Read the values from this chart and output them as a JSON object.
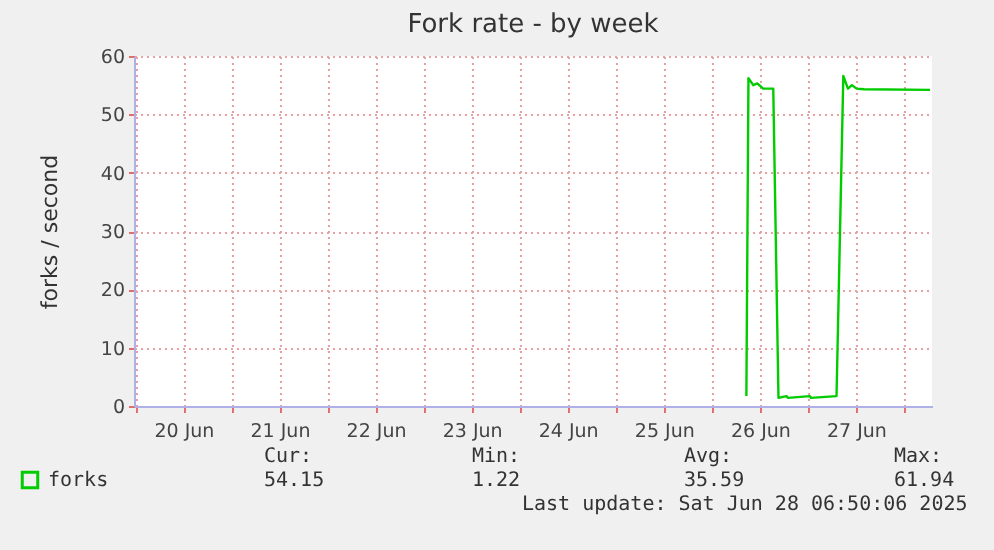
{
  "chart_data": {
    "type": "line",
    "title": "Fork rate - by week",
    "ylabel": "forks / second",
    "xlim": [
      "2025-06-19T23:40",
      "2025-06-28T07:00"
    ],
    "xticks": [
      {
        "value": "2025-06-20T00:00",
        "label": null
      },
      {
        "value": "2025-06-20T12:00",
        "label": "20 Jun"
      },
      {
        "value": "2025-06-21T00:00",
        "label": null
      },
      {
        "value": "2025-06-21T12:00",
        "label": "21 Jun"
      },
      {
        "value": "2025-06-22T00:00",
        "label": null
      },
      {
        "value": "2025-06-22T12:00",
        "label": "22 Jun"
      },
      {
        "value": "2025-06-23T00:00",
        "label": null
      },
      {
        "value": "2025-06-23T12:00",
        "label": "23 Jun"
      },
      {
        "value": "2025-06-24T00:00",
        "label": null
      },
      {
        "value": "2025-06-24T12:00",
        "label": "24 Jun"
      },
      {
        "value": "2025-06-25T00:00",
        "label": null
      },
      {
        "value": "2025-06-25T12:00",
        "label": "25 Jun"
      },
      {
        "value": "2025-06-26T00:00",
        "label": null
      },
      {
        "value": "2025-06-26T12:00",
        "label": "26 Jun"
      },
      {
        "value": "2025-06-27T00:00",
        "label": null
      },
      {
        "value": "2025-06-27T12:00",
        "label": "27 Jun"
      },
      {
        "value": "2025-06-28T00:00",
        "label": null
      }
    ],
    "ylim": [
      0,
      60
    ],
    "yticks": [
      0,
      10,
      20,
      30,
      40,
      50,
      60
    ],
    "grid": true,
    "legend": "bottom left",
    "marker": "none",
    "line_style": "solid",
    "series": [
      {
        "name": "forks",
        "color": "#00cc00",
        "x": [
          "2025-06-26T08:38",
          "2025-06-26T09:09",
          "2025-06-26T10:21",
          "2025-06-26T11:21",
          "2025-06-26T12:50",
          "2025-06-26T15:21",
          "2025-06-26T16:39",
          "2025-06-26T18:39",
          "2025-06-26T18:59",
          "2025-06-27T00:30",
          "2025-06-27T00:45",
          "2025-06-27T07:09",
          "2025-06-27T08:51",
          "2025-06-27T10:00",
          "2025-06-27T11:00",
          "2025-06-27T12:09",
          "2025-06-27T14:00",
          "2025-06-28T06:30"
        ],
        "values": [
          1.7,
          56.2,
          55.0,
          55.3,
          54.4,
          54.4,
          1.4,
          1.7,
          1.4,
          1.7,
          1.4,
          1.7,
          56.6,
          54.4,
          55.0,
          54.4,
          54.3,
          54.2
        ]
      }
    ],
    "annotations": [
      "Cur:",
      "Min:",
      "Avg:",
      "Max:",
      "54.15",
      "1.22",
      "35.59",
      "61.94",
      "Last update: Sat Jun 28 06:50:06 2025"
    ]
  }
}
